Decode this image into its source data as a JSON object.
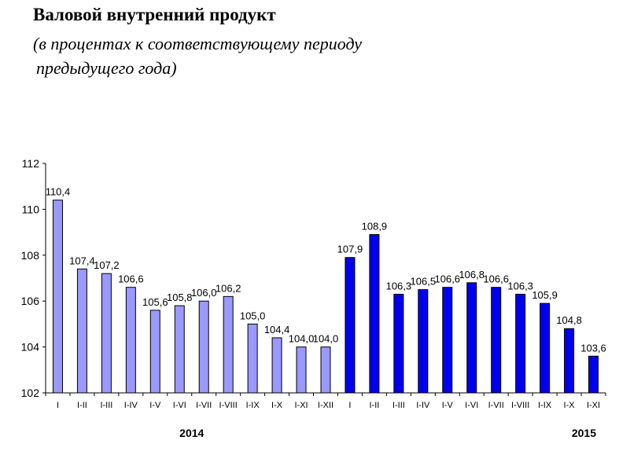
{
  "title": "Валовой внутренний продукт",
  "subtitle_line1": "(в процентах к соответствующему периоду",
  "subtitle_line2": "предыдущего года)",
  "chart_data": {
    "type": "bar",
    "title": "Валовой внутренний продукт",
    "subtitle": "(в процентах к соответствующему периоду предыдущего года)",
    "xlabel": "",
    "ylabel": "",
    "ylim": [
      102,
      112
    ],
    "yticks": [
      102,
      104,
      106,
      108,
      110,
      112
    ],
    "grid": false,
    "groups": [
      {
        "label": "2014",
        "start": 0,
        "end": 11
      },
      {
        "label": "2015",
        "start": 12,
        "end": 22
      }
    ],
    "categories": [
      "I",
      "I-II",
      "I-III",
      "I-IV",
      "I-V",
      "I-VI",
      "I-VII",
      "I-VIII",
      "I-IX",
      "I-X",
      "I-XI",
      "I-XII",
      "I",
      "I-II",
      "I-III",
      "I-IV",
      "I-V",
      "I-VI",
      "I-VII",
      "I-VIII",
      "I-IX",
      "I-X",
      "I-XI"
    ],
    "values": [
      110.4,
      107.4,
      107.2,
      106.6,
      105.6,
      105.8,
      106.0,
      106.2,
      105.0,
      104.4,
      104.0,
      104.0,
      107.9,
      108.9,
      106.3,
      106.5,
      106.6,
      106.8,
      106.6,
      106.3,
      105.9,
      104.8,
      103.6
    ],
    "value_labels": [
      "110,4",
      "107,4",
      "107,2",
      "106,6",
      "105,6",
      "105,8",
      "106,0",
      "106,2",
      "105,0",
      "104,4",
      "104,0",
      "104,0",
      "107,9",
      "108,9",
      "106,3",
      "106,5",
      "106,6",
      "106,8",
      "106,6",
      "106,3",
      "105,9",
      "104,8",
      "103,6"
    ],
    "series_colors": {
      "2014": "#9999ff",
      "2015": "#0000ee"
    }
  }
}
